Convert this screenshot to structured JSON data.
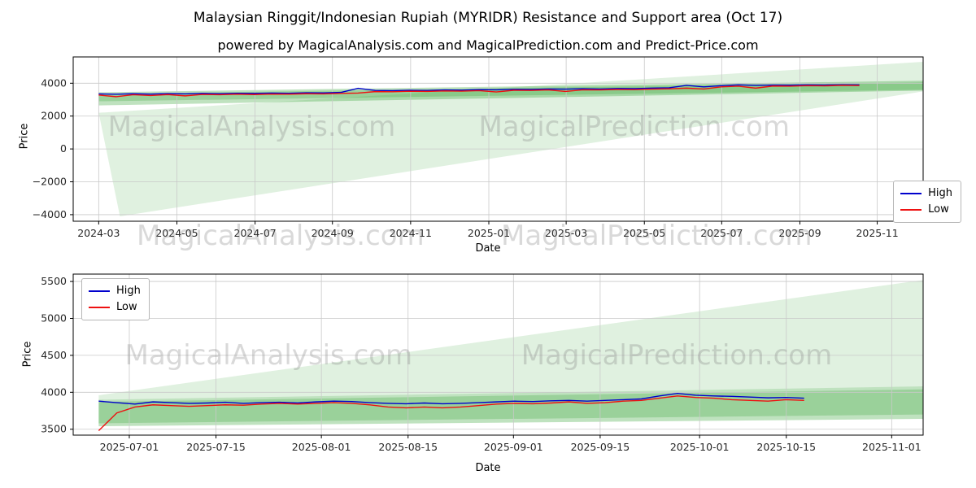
{
  "figure": {
    "title": "Malaysian Ringgit/Indonesian Rupiah (MYRIDR) Resistance and Support area (Oct 17)",
    "subtitle": "powered by MagicalAnalysis.com and MagicalPrediction.com and Predict-Price.com"
  },
  "watermark": {
    "left": "MagicalAnalysis.com",
    "right": "MagicalPrediction.com"
  },
  "legend": {
    "high_label": "High",
    "low_label": "Low"
  },
  "chart_data": [
    {
      "type": "line",
      "title": "",
      "xlabel": "Date",
      "ylabel": "Price",
      "ylim": [
        -4400,
        5600
      ],
      "grid": true,
      "legend_position": "lower right",
      "yticks": [
        {
          "v": -4000,
          "label": "−4000"
        },
        {
          "v": -2000,
          "label": "−2000"
        },
        {
          "v": 0,
          "label": "0"
        },
        {
          "v": 2000,
          "label": "2000"
        },
        {
          "v": 4000,
          "label": "4000"
        }
      ],
      "xticks": [
        {
          "pos": 0.03,
          "label": "2024-03"
        },
        {
          "pos": 0.122,
          "label": "2024-05"
        },
        {
          "pos": 0.214,
          "label": "2024-07"
        },
        {
          "pos": 0.305,
          "label": "2024-09"
        },
        {
          "pos": 0.397,
          "label": "2024-11"
        },
        {
          "pos": 0.489,
          "label": "2025-01"
        },
        {
          "pos": 0.58,
          "label": "2025-03"
        },
        {
          "pos": 0.672,
          "label": "2025-05"
        },
        {
          "pos": 0.763,
          "label": "2025-07"
        },
        {
          "pos": 0.855,
          "label": "2025-09"
        },
        {
          "pos": 0.946,
          "label": "2025-11"
        }
      ],
      "series": [
        {
          "name": "High",
          "color": "#0000cd",
          "x_range": [
            0.03,
            0.925
          ],
          "values": [
            3350,
            3330,
            3360,
            3340,
            3370,
            3350,
            3380,
            3360,
            3390,
            3380,
            3400,
            3390,
            3420,
            3410,
            3440,
            3690,
            3560,
            3545,
            3570,
            3560,
            3590,
            3580,
            3610,
            3600,
            3630,
            3620,
            3650,
            3640,
            3665,
            3650,
            3680,
            3670,
            3700,
            3720,
            3870,
            3780,
            3850,
            3900,
            3870,
            3890,
            3880,
            3900,
            3890,
            3910,
            3900
          ]
        },
        {
          "name": "Low",
          "color": "#ee1111",
          "x_range": [
            0.03,
            0.925
          ],
          "values": [
            3280,
            3180,
            3300,
            3250,
            3310,
            3230,
            3320,
            3300,
            3330,
            3310,
            3340,
            3330,
            3360,
            3350,
            3380,
            3400,
            3490,
            3480,
            3510,
            3500,
            3530,
            3520,
            3550,
            3470,
            3570,
            3560,
            3590,
            3500,
            3600,
            3590,
            3620,
            3610,
            3640,
            3660,
            3700,
            3650,
            3780,
            3820,
            3700,
            3830,
            3820,
            3850,
            3840,
            3870,
            3860
          ]
        }
      ],
      "bands": [
        {
          "color": "#2ca02c",
          "opacity": 0.15,
          "points": [
            [
              0.055,
              -4100
            ],
            [
              0.03,
              2200
            ],
            [
              1.0,
              5300
            ],
            [
              1.0,
              3500
            ]
          ]
        },
        {
          "color": "#2ca02c",
          "opacity": 0.3,
          "points": [
            [
              0.03,
              3450
            ],
            [
              1.0,
              4150
            ],
            [
              1.0,
              3550
            ],
            [
              0.03,
              2650
            ]
          ]
        },
        {
          "color": "#2ca02c",
          "opacity": 0.25,
          "points": [
            [
              0.03,
              3350
            ],
            [
              1.0,
              4050
            ],
            [
              1.0,
              3600
            ],
            [
              0.03,
              2900
            ]
          ]
        }
      ],
      "watermarks": [
        {
          "text": "MagicalAnalysis.com",
          "x": 0.21,
          "y": 0.42
        },
        {
          "text": "MagicalPrediction.com",
          "x": 0.66,
          "y": 0.42
        }
      ]
    },
    {
      "type": "line",
      "title": "",
      "xlabel": "Date",
      "ylabel": "Price",
      "ylim": [
        3420,
        5600
      ],
      "grid": true,
      "legend_position": "upper left",
      "yticks": [
        {
          "v": 3500,
          "label": "3500"
        },
        {
          "v": 4000,
          "label": "4000"
        },
        {
          "v": 4500,
          "label": "4500"
        },
        {
          "v": 5000,
          "label": "5000"
        },
        {
          "v": 5500,
          "label": "5500"
        }
      ],
      "xticks": [
        {
          "pos": 0.066,
          "label": "2025-07-01"
        },
        {
          "pos": 0.168,
          "label": "2025-07-15"
        },
        {
          "pos": 0.292,
          "label": "2025-08-01"
        },
        {
          "pos": 0.394,
          "label": "2025-08-15"
        },
        {
          "pos": 0.518,
          "label": "2025-09-01"
        },
        {
          "pos": 0.62,
          "label": "2025-09-15"
        },
        {
          "pos": 0.737,
          "label": "2025-10-01"
        },
        {
          "pos": 0.839,
          "label": "2025-10-15"
        },
        {
          "pos": 0.963,
          "label": "2025-11-01"
        }
      ],
      "series": [
        {
          "name": "High",
          "color": "#0000cd",
          "x_range": [
            0.03,
            0.86
          ],
          "values": [
            3880,
            3860,
            3840,
            3870,
            3860,
            3850,
            3855,
            3865,
            3850,
            3860,
            3865,
            3855,
            3870,
            3880,
            3875,
            3860,
            3850,
            3845,
            3855,
            3845,
            3850,
            3860,
            3870,
            3880,
            3875,
            3885,
            3890,
            3880,
            3890,
            3900,
            3910,
            3950,
            3985,
            3960,
            3950,
            3945,
            3935,
            3925,
            3930,
            3920
          ]
        },
        {
          "name": "Low",
          "color": "#ee1111",
          "x_range": [
            0.03,
            0.86
          ],
          "values": [
            3480,
            3720,
            3800,
            3830,
            3820,
            3810,
            3820,
            3830,
            3825,
            3840,
            3850,
            3840,
            3850,
            3860,
            3850,
            3830,
            3800,
            3790,
            3800,
            3790,
            3800,
            3820,
            3840,
            3850,
            3845,
            3855,
            3870,
            3850,
            3860,
            3880,
            3890,
            3920,
            3950,
            3930,
            3920,
            3900,
            3890,
            3880,
            3900,
            3890
          ]
        }
      ],
      "bands": [
        {
          "color": "#2ca02c",
          "opacity": 0.15,
          "points": [
            [
              0.03,
              3960
            ],
            [
              1.0,
              5520
            ],
            [
              1.0,
              4080
            ],
            [
              0.03,
              3900
            ]
          ]
        },
        {
          "color": "#2ca02c",
          "opacity": 0.3,
          "points": [
            [
              0.03,
              3900
            ],
            [
              1.0,
              4080
            ],
            [
              1.0,
              3640
            ],
            [
              0.03,
              3540
            ]
          ]
        },
        {
          "color": "#2ca02c",
          "opacity": 0.25,
          "points": [
            [
              0.03,
              3870
            ],
            [
              1.0,
              4040
            ],
            [
              1.0,
              3700
            ],
            [
              0.03,
              3580
            ]
          ]
        }
      ],
      "watermarks": [
        {
          "text": "MagicalAnalysis.com",
          "x": 0.23,
          "y": 0.5
        },
        {
          "text": "MagicalPrediction.com",
          "x": 0.71,
          "y": 0.5
        }
      ]
    }
  ]
}
